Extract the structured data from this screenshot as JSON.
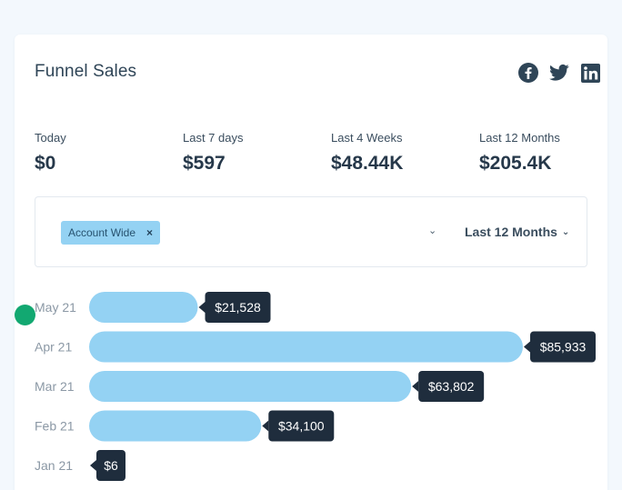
{
  "widget": {
    "title": "Funnel Sales"
  },
  "social": [
    {
      "icon": "facebook-icon"
    },
    {
      "icon": "twitter-icon"
    },
    {
      "icon": "linkedin-icon"
    }
  ],
  "stats": [
    {
      "label": "Today",
      "value": "$0"
    },
    {
      "label": "Last 7 days",
      "value": "$597"
    },
    {
      "label": "Last 4 Weeks",
      "value": "$48.44K"
    },
    {
      "label": "Last 12 Months",
      "value": "$205.4K"
    }
  ],
  "filters": {
    "chip_label": "Account Wide",
    "chip_remove": "×",
    "period": "Last 12 Months"
  },
  "colors": {
    "bar": "#94d2f3",
    "tooltip": "#1f2d3d",
    "marker": "#12a871"
  },
  "chart_data": {
    "type": "bar",
    "orientation": "horizontal",
    "categories": [
      "May 21",
      "Apr 21",
      "Mar 21",
      "Feb 21",
      "Jan 21"
    ],
    "values": [
      21528,
      85933,
      63802,
      34100,
      6
    ],
    "value_labels": [
      "$21,528",
      "$85,933",
      "$63,802",
      "$34,100",
      "$6"
    ],
    "title": "",
    "xlabel": "",
    "ylabel": "",
    "grid": false,
    "legend": "none"
  }
}
